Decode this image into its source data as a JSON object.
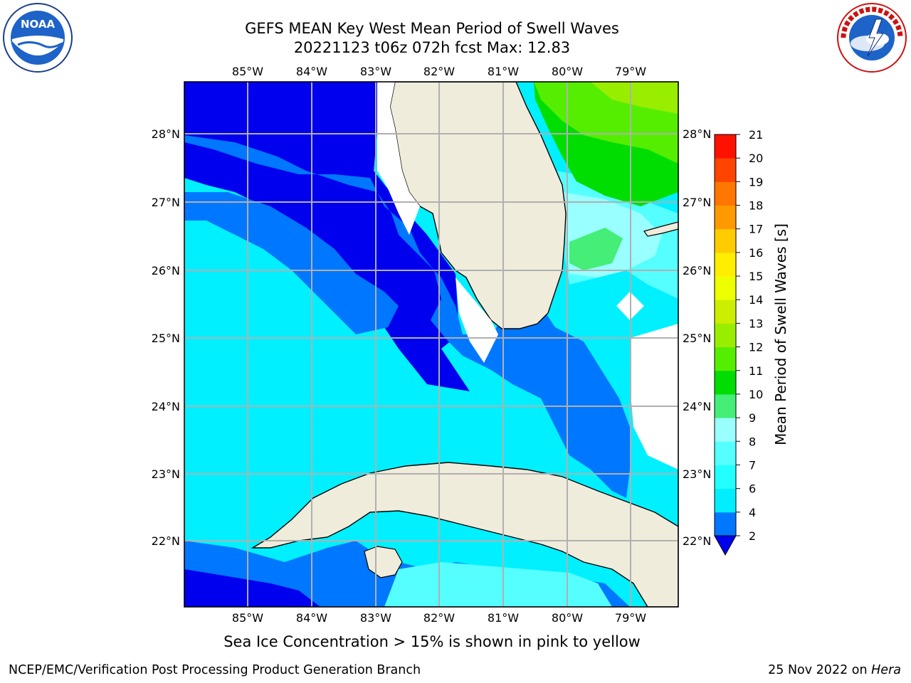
{
  "title": {
    "line1": "GEFS MEAN Key West Mean Period of Swell Waves",
    "line2": "20221123 t06z 072h fcst   Max: 12.83"
  },
  "logos": {
    "left": {
      "icon": "noaa-logo-icon",
      "text": "NOAA"
    },
    "right": {
      "icon": "nws-logo-icon",
      "text": "NATIONAL WEATHER SERVICE"
    }
  },
  "map": {
    "lon_ticks": [
      "85°W",
      "84°W",
      "83°W",
      "82°W",
      "81°W",
      "80°W",
      "79°W"
    ],
    "lat_ticks": [
      "28°N",
      "27°N",
      "26°N",
      "25°N",
      "24°N",
      "23°N",
      "22°N"
    ],
    "land_color": "#efecdc",
    "grid_color": "#b0b0b0"
  },
  "colorbar": {
    "label": "Mean Period of Swell Waves [s]",
    "ticks": [
      "2",
      "4",
      "6",
      "7",
      "8",
      "9",
      "10",
      "11",
      "12",
      "13",
      "14",
      "15",
      "16",
      "17",
      "18",
      "19",
      "20",
      "21"
    ],
    "colors": [
      "#0000ee",
      "#0077ff",
      "#00eeff",
      "#22ffff",
      "#55ffff",
      "#99ffff",
      "#44ee77",
      "#00dd00",
      "#55ee00",
      "#99ee00",
      "#ccee00",
      "#eeff00",
      "#ffee00",
      "#ffcc00",
      "#ff9900",
      "#ff7700",
      "#ff4400",
      "#ff1100"
    ],
    "extend_color": "#0000ee"
  },
  "sea_ice_note": "Sea Ice Concentration > 15% is shown in pink to yellow",
  "footer": {
    "left": "NCEP/EMC/Verification Post Processing Product Generation Branch",
    "right_prefix": "25 Nov 2022 on ",
    "right_italic": "Hera"
  }
}
